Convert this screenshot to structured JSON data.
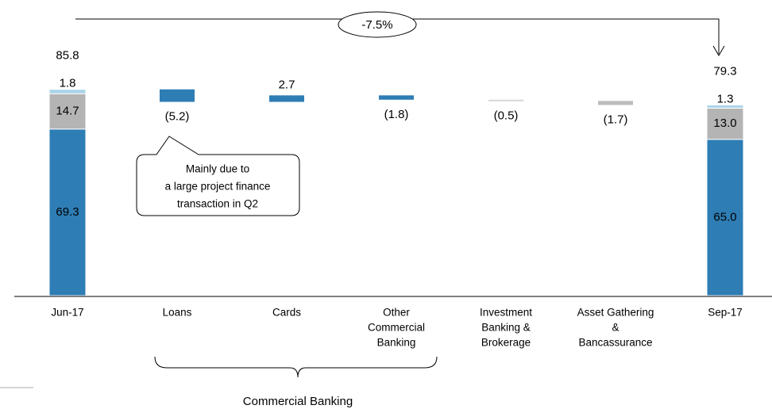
{
  "chart_data": {
    "type": "waterfall",
    "categories": [
      [
        "Jun-17"
      ],
      [
        "Loans"
      ],
      [
        "Cards"
      ],
      [
        "Other",
        "Commercial",
        "Banking"
      ],
      [
        "Investment",
        "Banking &",
        "Brokerage"
      ],
      [
        "Asset Gathering",
        "&",
        "Bancassurance"
      ],
      [
        "Sep-17"
      ]
    ],
    "series": [
      {
        "color": "#2e7db5",
        "values": [
          69.3,
          null,
          null,
          null,
          null,
          null,
          65.0
        ],
        "value_labels": [
          "69.3",
          null,
          null,
          null,
          null,
          null,
          "65.0"
        ],
        "label_color": "#ffffff"
      },
      {
        "color": "#b4b4b4",
        "values": [
          14.7,
          null,
          null,
          null,
          null,
          null,
          13.0
        ],
        "value_labels": [
          "14.7",
          null,
          null,
          null,
          null,
          null,
          "13.0"
        ],
        "label_color": "#000000"
      },
      {
        "color": "#a9d3e8",
        "values": [
          1.8,
          null,
          null,
          null,
          null,
          null,
          1.3
        ],
        "value_labels": [
          "1.8",
          null,
          null,
          null,
          null,
          null,
          "1.3"
        ],
        "label_color": "#000000"
      }
    ],
    "totals": [
      85.8,
      null,
      null,
      null,
      null,
      null,
      79.3
    ],
    "changes": [
      null,
      -5.2,
      2.7,
      -1.8,
      -0.5,
      -1.7,
      null
    ],
    "change_labels": [
      null,
      "(5.2)",
      "2.7",
      "(1.8)",
      "(0.5)",
      "(1.7)",
      null
    ],
    "change_colors": [
      null,
      "#2e7db5",
      "#2e7db5",
      "#2e7db5",
      "#d6d6d6",
      "#bdbdbd",
      null
    ],
    "ylim": [
      0,
      90
    ],
    "change_annotation": "-7.5%",
    "callout": [
      "Mainly due to",
      "a large project finance",
      "transaction in Q2"
    ],
    "group_label": "Commercial Banking"
  }
}
